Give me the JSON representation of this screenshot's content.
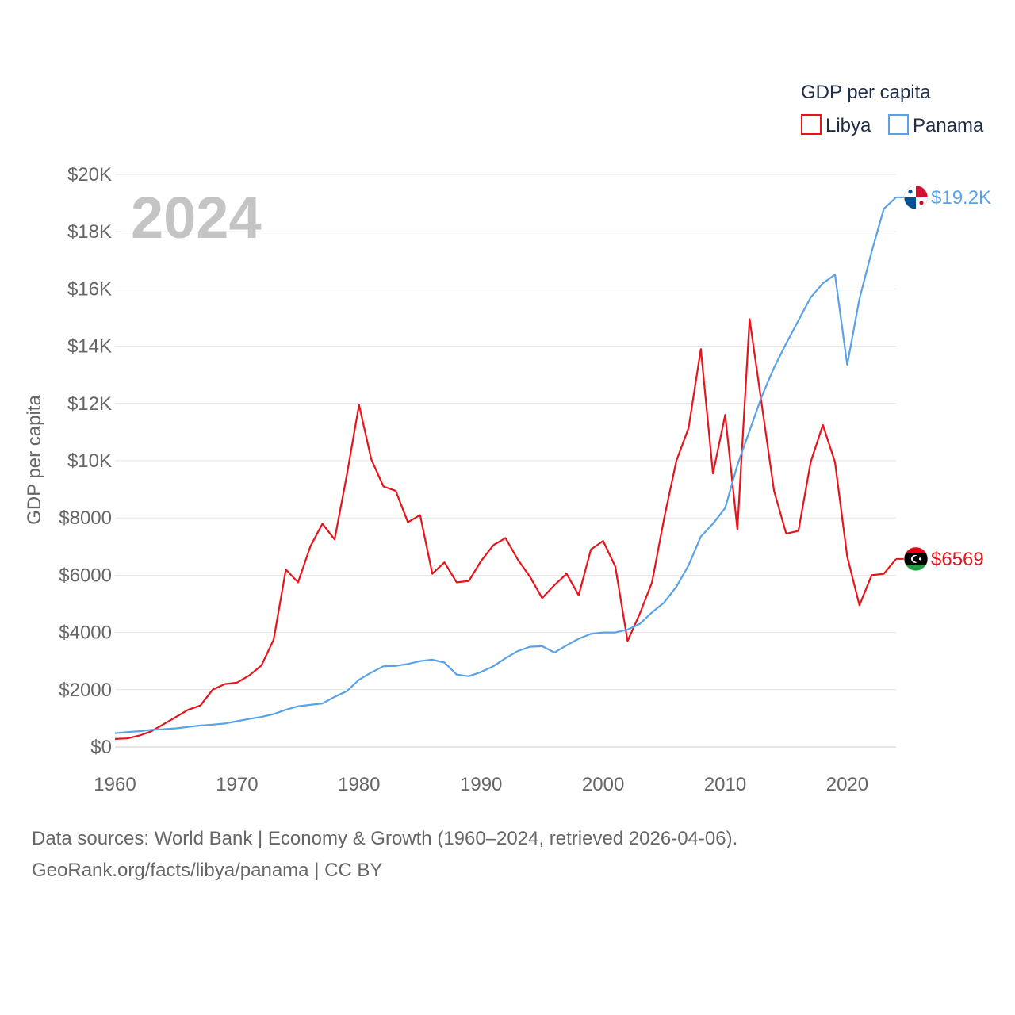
{
  "chart_data": {
    "type": "line",
    "title": "",
    "year_overlay": "2024",
    "xlabel": "",
    "ylabel": "GDP per capita",
    "xlim": [
      1960,
      2024
    ],
    "ylim": [
      0,
      20000
    ],
    "x_ticks": [
      1960,
      1970,
      1980,
      1990,
      2000,
      2010,
      2020
    ],
    "x_tick_labels": [
      "1960",
      "1970",
      "1980",
      "1990",
      "2000",
      "2010",
      "2020"
    ],
    "y_ticks": [
      0,
      2000,
      4000,
      6000,
      8000,
      10000,
      12000,
      14000,
      16000,
      18000,
      20000
    ],
    "y_tick_labels": [
      "$0",
      "$2000",
      "$4000",
      "$6000",
      "$8000",
      "$10K",
      "$12K",
      "$14K",
      "$16K",
      "$18K",
      "$20K"
    ],
    "grid": true,
    "legend": {
      "title": "GDP per capita",
      "position": "top-right"
    },
    "x": [
      1960,
      1961,
      1962,
      1963,
      1964,
      1965,
      1966,
      1967,
      1968,
      1969,
      1970,
      1971,
      1972,
      1973,
      1974,
      1975,
      1976,
      1977,
      1978,
      1979,
      1980,
      1981,
      1982,
      1983,
      1984,
      1985,
      1986,
      1987,
      1988,
      1989,
      1990,
      1991,
      1992,
      1993,
      1994,
      1995,
      1996,
      1997,
      1998,
      1999,
      2000,
      2001,
      2002,
      2003,
      2004,
      2005,
      2006,
      2007,
      2008,
      2009,
      2010,
      2011,
      2012,
      2013,
      2014,
      2015,
      2016,
      2017,
      2018,
      2019,
      2020,
      2021,
      2022,
      2023,
      2024
    ],
    "series": [
      {
        "name": "Libya",
        "color": "#e8141c",
        "end_label": "$6569",
        "flag": "libya-flag",
        "values": [
          280,
          300,
          400,
          550,
          800,
          1050,
          1300,
          1450,
          2000,
          2200,
          2250,
          2500,
          2850,
          3750,
          6200,
          5750,
          7000,
          7800,
          7250,
          9500,
          11950,
          10050,
          9100,
          8950,
          7850,
          8100,
          6050,
          6450,
          5750,
          5800,
          6500,
          7050,
          7300,
          6550,
          5950,
          5200,
          5650,
          6050,
          5300,
          6900,
          7200,
          6300,
          3700,
          4650,
          5750,
          8000,
          10000,
          11150,
          13900,
          9550,
          11600,
          7600,
          14950,
          11950,
          8950,
          7450,
          7550,
          9950,
          11250,
          9950,
          6650,
          4950,
          6000,
          6050,
          6569
        ]
      },
      {
        "name": "Panama",
        "color": "#5aa2e6",
        "end_label": "$19.2K",
        "flag": "panama-flag",
        "values": [
          480,
          520,
          550,
          600,
          620,
          650,
          700,
          750,
          780,
          820,
          900,
          980,
          1050,
          1150,
          1300,
          1420,
          1470,
          1520,
          1750,
          1950,
          2350,
          2600,
          2820,
          2830,
          2900,
          3000,
          3050,
          2950,
          2530,
          2470,
          2620,
          2820,
          3100,
          3350,
          3500,
          3520,
          3300,
          3550,
          3780,
          3950,
          4000,
          4000,
          4100,
          4300,
          4700,
          5050,
          5600,
          6350,
          7350,
          7800,
          8350,
          9850,
          11050,
          12250,
          13250,
          14100,
          14900,
          15700,
          16200,
          16500,
          13350,
          15650,
          17300,
          18800,
          19200
        ]
      }
    ]
  },
  "footer": {
    "line1": "Data sources: World Bank | Economy & Growth (1960–2024, retrieved 2026-04-06).",
    "line2": "GeoRank.org/facts/libya/panama | CC BY"
  }
}
